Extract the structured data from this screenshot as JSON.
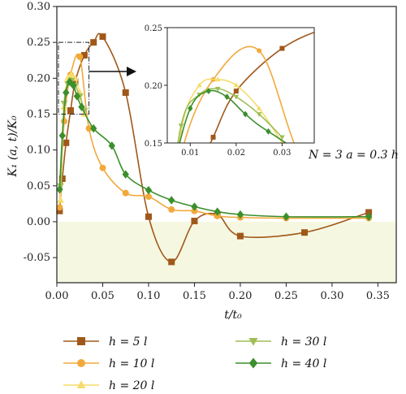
{
  "chart_data": {
    "type": "line",
    "title": "",
    "xlabel": "t/t₀",
    "ylabel": "K₁ (a, t)/K₀",
    "xlim": [
      0,
      0.37
    ],
    "ylim": [
      -0.085,
      0.3
    ],
    "xticks": [
      "0.00",
      "0.05",
      "0.10",
      "0.15",
      "0.20",
      "0.25",
      "0.30",
      "0.35"
    ],
    "yticks": [
      "-0.05",
      "0.00",
      "0.05",
      "0.10",
      "0.15",
      "0.20",
      "0.25",
      "0.30"
    ],
    "negative_region_color": "#f5f7e1",
    "annotation": "N = 3  a = 0.3 h",
    "legend_position": "bottom",
    "series": [
      {
        "name": "h = 5 l",
        "color": "#a0581a",
        "line_color": "#a0581a",
        "marker": "square",
        "x": [
          0.003,
          0.006,
          0.01,
          0.015,
          0.02,
          0.03,
          0.04,
          0.05,
          0.075,
          0.1,
          0.125,
          0.15,
          0.175,
          0.2,
          0.27,
          0.34
        ],
        "y": [
          0.015,
          0.06,
          0.11,
          0.155,
          0.195,
          0.232,
          0.25,
          0.258,
          0.18,
          0.007,
          -0.056,
          0.001,
          0.01,
          -0.02,
          -0.015,
          0.013
        ]
      },
      {
        "name": "h = 10 l",
        "color": "#f2a93b",
        "line_color": "#f2a93b",
        "marker": "circle",
        "x": [
          0.003,
          0.008,
          0.015,
          0.025,
          0.035,
          0.05,
          0.075,
          0.1,
          0.125,
          0.15,
          0.175,
          0.2,
          0.25,
          0.34
        ],
        "y": [
          0.02,
          0.14,
          0.205,
          0.23,
          0.13,
          0.075,
          0.04,
          0.035,
          0.017,
          0.015,
          0.008,
          0.006,
          0.005,
          0.005
        ]
      },
      {
        "name": "h = 20 l",
        "color": "#f6dc6c",
        "line_color": "#f6dc6c",
        "marker": "triangle-up",
        "x": [
          0.004,
          0.008,
          0.012,
          0.016,
          0.02,
          0.025,
          0.03
        ],
        "y": [
          0.03,
          0.16,
          0.2,
          0.205,
          0.2,
          0.18,
          0.15
        ]
      },
      {
        "name": "h = 30 l",
        "color": "#9fbe55",
        "line_color": "#9fbe55",
        "marker": "triangle-down",
        "x": [
          0.004,
          0.008,
          0.012,
          0.016,
          0.02,
          0.025,
          0.03
        ],
        "y": [
          0.05,
          0.165,
          0.192,
          0.197,
          0.19,
          0.175,
          0.155
        ]
      },
      {
        "name": "h = 40 l",
        "color": "#3b8f2c",
        "line_color": "#3b8f2c",
        "marker": "diamond",
        "x": [
          0.003,
          0.006,
          0.01,
          0.014,
          0.018,
          0.022,
          0.027,
          0.04,
          0.06,
          0.075,
          0.1,
          0.125,
          0.15,
          0.175,
          0.2,
          0.25,
          0.34
        ],
        "y": [
          0.045,
          0.12,
          0.18,
          0.195,
          0.19,
          0.175,
          0.16,
          0.13,
          0.106,
          0.066,
          0.044,
          0.03,
          0.021,
          0.014,
          0.01,
          0.007,
          0.007
        ]
      }
    ],
    "inset": {
      "xlim": [
        0.005,
        0.037
      ],
      "ylim": [
        0.15,
        0.25
      ],
      "xticks": [
        "0.01",
        "0.02",
        "0.03"
      ],
      "yticks": [
        "0.15",
        "0.20",
        "0.25"
      ],
      "zoom_box": {
        "x": [
          0.0,
          0.035
        ],
        "y": [
          0.15,
          0.25
        ]
      }
    }
  }
}
